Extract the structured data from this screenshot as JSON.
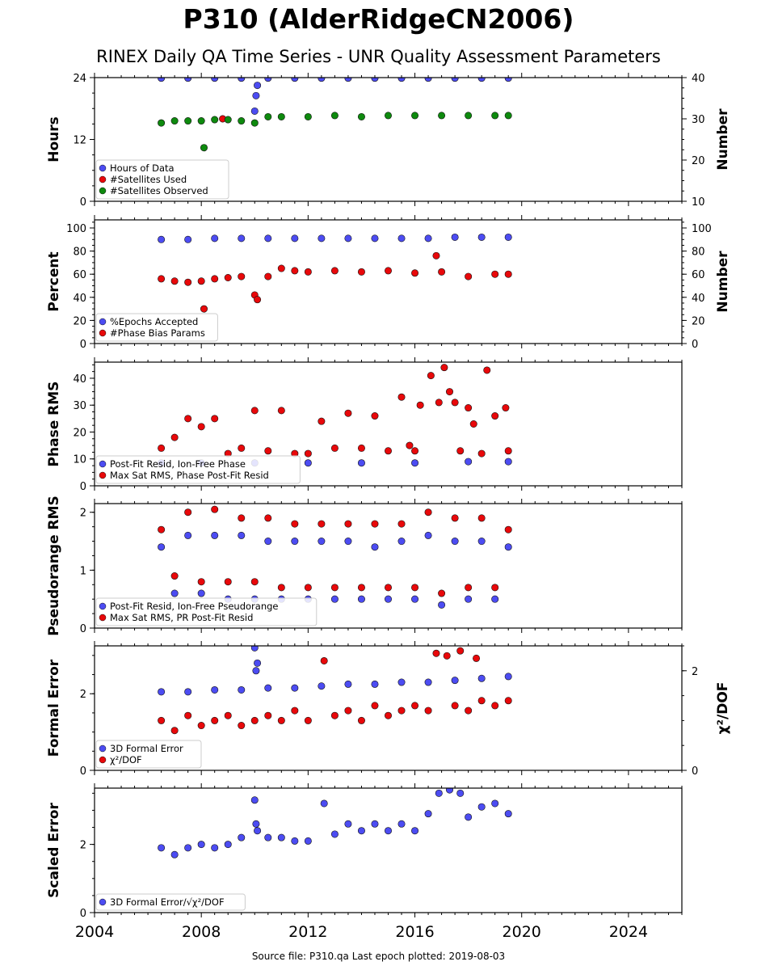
{
  "page": {
    "title": "P310 (AlderRidgeCN2006)",
    "subtitle": "RINEX Daily QA Time Series - UNR Quality Assessment Parameters",
    "footer": "Source file: P310.qa Last epoch plotted: 2019-08-03"
  },
  "colors": {
    "blue": "#4c4cf2",
    "red": "#e8080a",
    "green": "#0e8a0e",
    "outline": "#111111"
  },
  "chart_data": [
    {
      "type": "scatter",
      "ylabel": "Hours",
      "y2label": "Number",
      "xlim": [
        2004,
        2026
      ],
      "ylim": [
        0,
        24
      ],
      "yticks": [
        0,
        12,
        24
      ],
      "y2lim": [
        10,
        40
      ],
      "y2ticks": [
        10,
        20,
        30,
        40
      ],
      "legend_position": "lower-left",
      "series": [
        {
          "name": "Hours of Data",
          "color": "blue",
          "axis": "left",
          "x": [
            2006.5,
            2007.5,
            2008.5,
            2009.5,
            2010.0,
            2010.05,
            2010.1,
            2010.5,
            2011.5,
            2012.5,
            2013.5,
            2014.5,
            2015.5,
            2016.5,
            2017.5,
            2018.5,
            2019.5
          ],
          "y": [
            23.9,
            23.9,
            23.9,
            23.9,
            17.5,
            20.5,
            22.5,
            23.9,
            23.9,
            23.9,
            23.9,
            23.9,
            23.9,
            23.9,
            23.9,
            23.9,
            23.9
          ]
        },
        {
          "name": "#Satellites Used",
          "color": "red",
          "axis": "right",
          "x": [
            2008.8
          ],
          "y": [
            30
          ]
        },
        {
          "name": "#Satellites Observed",
          "color": "green",
          "axis": "right",
          "x": [
            2006.5,
            2007.0,
            2007.5,
            2008.0,
            2008.1,
            2008.5,
            2009.0,
            2009.5,
            2010.0,
            2010.5,
            2011.0,
            2012.0,
            2013.0,
            2014.0,
            2015.0,
            2016.0,
            2017.0,
            2018.0,
            2019.0,
            2019.5
          ],
          "y": [
            29,
            29.5,
            29.5,
            29.5,
            23,
            29.8,
            29.8,
            29.5,
            29.0,
            30.5,
            30.5,
            30.5,
            30.8,
            30.5,
            30.8,
            30.8,
            30.8,
            30.8,
            30.8,
            30.8
          ]
        }
      ]
    },
    {
      "type": "scatter",
      "ylabel": "Percent",
      "y2label": "Number",
      "xlim": [
        2004,
        2026
      ],
      "ylim": [
        0,
        107
      ],
      "yticks": [
        0,
        20,
        40,
        60,
        80,
        100
      ],
      "y2lim": [
        0,
        107
      ],
      "y2ticks": [
        0,
        20,
        40,
        60,
        80,
        100
      ],
      "legend_position": "lower-left",
      "series": [
        {
          "name": "%Epochs Accepted",
          "color": "blue",
          "axis": "left",
          "x": [
            2006.5,
            2007.5,
            2008.5,
            2009.5,
            2010.5,
            2011.5,
            2012.5,
            2013.5,
            2014.5,
            2015.5,
            2016.5,
            2017.5,
            2018.5,
            2019.5
          ],
          "y": [
            90,
            90,
            91,
            91,
            91,
            91,
            91,
            91,
            91,
            91,
            91,
            92,
            92,
            92
          ]
        },
        {
          "name": "#Phase Bias Params",
          "color": "red",
          "axis": "right",
          "x": [
            2006.5,
            2007.0,
            2007.5,
            2008.0,
            2008.1,
            2008.5,
            2009.0,
            2009.5,
            2010.0,
            2010.1,
            2010.5,
            2011.0,
            2011.5,
            2012.0,
            2013.0,
            2014.0,
            2015.0,
            2016.0,
            2016.8,
            2017.0,
            2018.0,
            2019.0,
            2019.5
          ],
          "y": [
            56,
            54,
            53,
            54,
            30,
            56,
            57,
            58,
            42,
            38,
            58,
            65,
            63,
            62,
            63,
            62,
            63,
            61,
            76,
            62,
            58,
            60,
            60
          ]
        }
      ]
    },
    {
      "type": "scatter",
      "ylabel": "Phase RMS",
      "xlim": [
        2004,
        2026
      ],
      "ylim": [
        0,
        46
      ],
      "yticks": [
        0,
        10,
        20,
        30,
        40
      ],
      "legend_position": "lower-left",
      "series": [
        {
          "name": "Post-Fit Resid, Ion-Free Phase",
          "color": "blue",
          "x": [
            2006.5,
            2008.0,
            2010.0,
            2012.0,
            2014.0,
            2016.0,
            2018.0,
            2019.5
          ],
          "y": [
            8.5,
            8.5,
            8.5,
            8.5,
            8.5,
            8.5,
            9.0,
            9.0
          ]
        },
        {
          "name": "Max Sat RMS, Phase Post-Fit Resid",
          "color": "red",
          "x": [
            2006.5,
            2007.0,
            2007.5,
            2008.0,
            2008.5,
            2009.0,
            2009.5,
            2010.0,
            2010.5,
            2011.0,
            2011.5,
            2012.0,
            2012.5,
            2013.0,
            2013.5,
            2014.0,
            2014.5,
            2015.0,
            2015.5,
            2015.8,
            2016.0,
            2016.2,
            2016.6,
            2016.9,
            2017.1,
            2017.3,
            2017.5,
            2017.7,
            2018.0,
            2018.2,
            2018.5,
            2018.7,
            2019.0,
            2019.4,
            2019.5
          ],
          "y": [
            14,
            18,
            25,
            22,
            25,
            12,
            14,
            28,
            13,
            28,
            12,
            12,
            24,
            14,
            27,
            14,
            26,
            13,
            33,
            15,
            13,
            30,
            41,
            31,
            44,
            35,
            31,
            13,
            29,
            23,
            12,
            43,
            26,
            29,
            13
          ]
        }
      ]
    },
    {
      "type": "scatter",
      "ylabel": "Pseudorange RMS",
      "xlim": [
        2004,
        2026
      ],
      "ylim": [
        0,
        2.15
      ],
      "yticks": [
        0,
        1,
        2
      ],
      "legend_position": "lower-left",
      "series": [
        {
          "name": "Post-Fit Resid, Ion-Free Pseudorange",
          "color": "blue",
          "x": [
            2006.5,
            2007.0,
            2007.5,
            2008.0,
            2008.5,
            2009.0,
            2009.5,
            2010.0,
            2010.5,
            2011.0,
            2011.5,
            2012.0,
            2012.5,
            2013.0,
            2013.5,
            2014.0,
            2014.5,
            2015.0,
            2015.5,
            2016.0,
            2016.5,
            2017.0,
            2017.5,
            2018.0,
            2018.5,
            2019.0,
            2019.5
          ],
          "y": [
            1.4,
            0.6,
            1.6,
            0.6,
            1.6,
            0.5,
            1.6,
            0.5,
            1.5,
            0.5,
            1.5,
            0.5,
            1.5,
            0.5,
            1.5,
            0.5,
            1.4,
            0.5,
            1.5,
            0.5,
            1.6,
            0.4,
            1.5,
            0.5,
            1.5,
            0.5,
            1.4
          ]
        },
        {
          "name": "Max Sat RMS, PR Post-Fit Resid",
          "color": "red",
          "x": [
            2006.5,
            2007.0,
            2007.5,
            2008.0,
            2008.5,
            2009.0,
            2009.5,
            2010.0,
            2010.5,
            2011.0,
            2011.5,
            2012.0,
            2012.5,
            2013.0,
            2013.5,
            2014.0,
            2014.5,
            2015.0,
            2015.5,
            2016.0,
            2016.5,
            2017.0,
            2017.5,
            2018.0,
            2018.5,
            2019.0,
            2019.5
          ],
          "y": [
            1.7,
            0.9,
            2.0,
            0.8,
            2.05,
            0.8,
            1.9,
            0.8,
            1.9,
            0.7,
            1.8,
            0.7,
            1.8,
            0.7,
            1.8,
            0.7,
            1.8,
            0.7,
            1.8,
            0.7,
            2.0,
            0.6,
            1.9,
            0.7,
            1.9,
            0.7,
            1.7
          ]
        }
      ]
    },
    {
      "type": "scatter",
      "ylabel": "Formal Error",
      "y2label": "χ²/DOF",
      "xlim": [
        2004,
        2026
      ],
      "ylim": [
        0,
        3.25
      ],
      "yticks": [
        0,
        2
      ],
      "y2lim": [
        0,
        2.5
      ],
      "y2ticks": [
        0,
        2
      ],
      "legend_position": "lower-left",
      "series": [
        {
          "name": "3D Formal Error",
          "color": "blue",
          "axis": "left",
          "x": [
            2006.5,
            2007.5,
            2008.5,
            2009.5,
            2010.0,
            2010.05,
            2010.1,
            2010.5,
            2011.5,
            2012.5,
            2013.5,
            2014.5,
            2015.5,
            2016.5,
            2017.5,
            2018.5,
            2019.5
          ],
          "y": [
            2.05,
            2.05,
            2.1,
            2.1,
            3.2,
            2.6,
            2.8,
            2.15,
            2.15,
            2.2,
            2.25,
            2.25,
            2.3,
            2.3,
            2.35,
            2.4,
            2.45
          ]
        },
        {
          "name": "χ²/DOF",
          "color": "red",
          "axis": "right",
          "x": [
            2006.5,
            2007.0,
            2007.5,
            2008.0,
            2008.5,
            2009.0,
            2009.5,
            2010.0,
            2010.5,
            2011.0,
            2011.5,
            2012.0,
            2012.6,
            2013.0,
            2013.5,
            2014.0,
            2014.5,
            2015.0,
            2015.5,
            2016.0,
            2016.5,
            2016.8,
            2017.2,
            2017.5,
            2017.7,
            2018.0,
            2018.3,
            2018.5,
            2019.0,
            2019.5
          ],
          "y": [
            1.0,
            0.8,
            1.1,
            0.9,
            1.0,
            1.1,
            0.9,
            1.0,
            1.1,
            1.0,
            1.2,
            1.0,
            2.2,
            1.1,
            1.2,
            1.0,
            1.3,
            1.1,
            1.2,
            1.3,
            1.2,
            2.35,
            2.3,
            1.3,
            2.4,
            1.2,
            2.25,
            1.4,
            1.3,
            1.4
          ]
        }
      ]
    },
    {
      "type": "scatter",
      "ylabel": "Scaled Error",
      "xlim": [
        2004,
        2026
      ],
      "xticks": [
        2004,
        2008,
        2012,
        2016,
        2020,
        2024
      ],
      "ylim": [
        0,
        3.65
      ],
      "yticks": [
        0,
        2
      ],
      "legend_position": "lower-left",
      "series": [
        {
          "name": "3D Formal Error/√χ²/DOF",
          "color": "blue",
          "x": [
            2006.5,
            2007.0,
            2007.5,
            2008.0,
            2008.5,
            2009.0,
            2009.5,
            2010.0,
            2010.05,
            2010.1,
            2010.5,
            2011.0,
            2011.5,
            2012.0,
            2012.6,
            2013.0,
            2013.5,
            2014.0,
            2014.5,
            2015.0,
            2015.5,
            2016.0,
            2016.5,
            2016.9,
            2017.3,
            2017.7,
            2018.0,
            2018.5,
            2019.0,
            2019.5
          ],
          "y": [
            1.9,
            1.7,
            1.9,
            2.0,
            1.9,
            2.0,
            2.2,
            3.3,
            2.6,
            2.4,
            2.2,
            2.2,
            2.1,
            2.1,
            3.2,
            2.3,
            2.6,
            2.4,
            2.6,
            2.4,
            2.6,
            2.4,
            2.9,
            3.5,
            3.6,
            3.5,
            2.8,
            3.1,
            3.2,
            2.9
          ]
        }
      ]
    }
  ]
}
